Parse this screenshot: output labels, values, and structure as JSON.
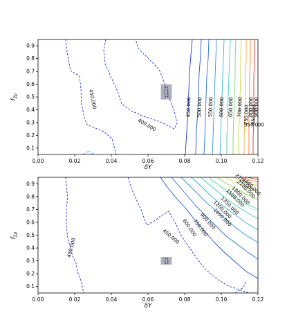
{
  "chart_data": [
    {
      "type": "contour",
      "xlabel": "δY",
      "ylabel": "f2p",
      "xlim": [
        0.0,
        0.12
      ],
      "ylim": [
        0.05,
        0.95
      ],
      "xticks": [
        "0.00",
        "0.02",
        "0.04",
        "0.06",
        "0.08",
        "0.10",
        "0.12"
      ],
      "yticks": [
        "0.1",
        "0.2",
        "0.3",
        "0.4",
        "0.5",
        "0.6",
        "0.7",
        "0.8",
        "0.9"
      ],
      "grid": false,
      "contour_labels": [
        {
          "text": "450.000",
          "x": 0.029,
          "y": 0.48,
          "angle": 78
        },
        {
          "text": "400.000",
          "x": 0.059,
          "y": 0.27,
          "angle": 30
        },
        {
          "text": "450.000",
          "x": 0.083,
          "y": 0.42,
          "angle": -88
        },
        {
          "text": "500.000",
          "x": 0.089,
          "y": 0.42,
          "angle": -88
        },
        {
          "text": "550.000",
          "x": 0.095,
          "y": 0.42,
          "angle": -88
        },
        {
          "text": "600.000",
          "x": 0.101,
          "y": 0.42,
          "angle": -88
        },
        {
          "text": "650.000",
          "x": 0.106,
          "y": 0.42,
          "angle": -88
        },
        {
          "text": "700.000",
          "x": 0.111,
          "y": 0.42,
          "angle": -88
        },
        {
          "text": "750.000",
          "x": 0.1145,
          "y": 0.36,
          "angle": -88
        },
        {
          "text": "800.000",
          "x": 0.117,
          "y": 0.42,
          "angle": -88
        },
        {
          "text": "850.000",
          "x": 0.1185,
          "y": 0.36,
          "angle": -88
        },
        {
          "text": "900.000",
          "x": 0.12,
          "y": 0.42,
          "angle": -88
        },
        {
          "text": "950.000",
          "x": 0.118,
          "y": 0.27,
          "angle": 0
        }
      ],
      "highlight_region": {
        "x": [
          0.067,
          0.073
        ],
        "y": [
          0.48,
          0.6
        ]
      }
    },
    {
      "type": "contour",
      "xlabel": "δY",
      "ylabel": "f2p",
      "xlim": [
        0.0,
        0.12
      ],
      "ylim": [
        0.05,
        0.95
      ],
      "xticks": [
        "0.00",
        "0.02",
        "0.04",
        "0.06",
        "0.08",
        "0.10",
        "0.12"
      ],
      "yticks": [
        "0.1",
        "0.2",
        "0.3",
        "0.4",
        "0.5",
        "0.6",
        "0.7",
        "0.8",
        "0.9"
      ],
      "grid": false,
      "contour_labels": [
        {
          "text": "450.000",
          "x": 0.019,
          "y": 0.4,
          "angle": -75
        },
        {
          "text": "450.000",
          "x": 0.072,
          "y": 0.48,
          "angle": 40
        },
        {
          "text": "600.000",
          "x": 0.082,
          "y": 0.55,
          "angle": 55
        },
        {
          "text": "750.000",
          "x": 0.088,
          "y": 0.55,
          "angle": 52
        },
        {
          "text": "900.000",
          "x": 0.092,
          "y": 0.6,
          "angle": 48
        },
        {
          "text": "1050.000",
          "x": 0.1,
          "y": 0.63,
          "angle": 45
        },
        {
          "text": "1200.000",
          "x": 0.1,
          "y": 0.69,
          "angle": 45
        },
        {
          "text": "1350.000",
          "x": 0.104,
          "y": 0.72,
          "angle": 45
        },
        {
          "text": "1500.000",
          "x": 0.107,
          "y": 0.78,
          "angle": 45
        },
        {
          "text": "1800.000",
          "x": 0.11,
          "y": 0.8,
          "angle": 45
        },
        {
          "text": "2100.000",
          "x": 0.113,
          "y": 0.85,
          "angle": 45
        },
        {
          "text": "2400.000",
          "x": 0.116,
          "y": 0.87,
          "angle": 45
        },
        {
          "text": "2700.000",
          "x": 0.112,
          "y": 0.9,
          "angle": 45
        }
      ],
      "highlight_region": {
        "x": [
          0.067,
          0.073
        ],
        "y": [
          0.27,
          0.33
        ]
      }
    }
  ]
}
